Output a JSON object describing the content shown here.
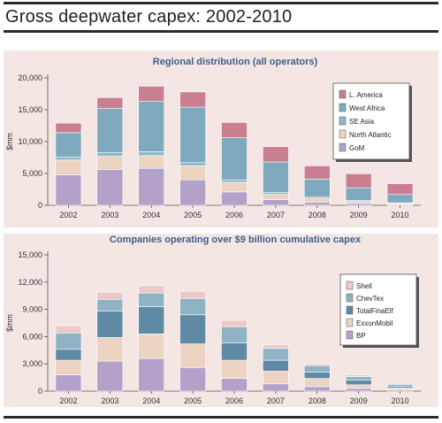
{
  "title": "Gross deepwater capex: 2002-2010",
  "colors": {
    "background": "#f4e6e3",
    "L. America": "#c97f90",
    "West Africa": "#7fa9be",
    "SE Asia": "#8fb8c9",
    "North Atlantic": "#ecd3c2",
    "GoM": "#b3a1c9",
    "Shell": "#ecc9c6",
    "ChevTex": "#8fb2c5",
    "TotalFinaElf": "#5f89a5",
    "ExxonMobil": "#ecd3c2",
    "BP": "#b3a1c9"
  },
  "chart_data": [
    {
      "type": "bar",
      "stacked": true,
      "title": "Regional distribution (all operators)",
      "ylabel": "$mm",
      "xlabel": "",
      "ylim": [
        0,
        20000
      ],
      "yticks": [
        "0",
        "5,000",
        "10,000",
        "15,000",
        "20,000"
      ],
      "ytick_values": [
        0,
        5000,
        10000,
        15000,
        20000
      ],
      "grid": false,
      "legend_position": "right",
      "categories": [
        "2002",
        "2003",
        "2004",
        "2005",
        "2006",
        "2007",
        "2008",
        "2009",
        "2010"
      ],
      "series": [
        {
          "name": "GoM",
          "values": [
            4800,
            5600,
            5800,
            4000,
            2100,
            900,
            500,
            300,
            100
          ]
        },
        {
          "name": "North Atlantic",
          "values": [
            2300,
            2100,
            2000,
            2200,
            1500,
            800,
            600,
            300,
            200
          ]
        },
        {
          "name": "SE Asia",
          "values": [
            500,
            600,
            600,
            500,
            400,
            300,
            200,
            150,
            100
          ]
        },
        {
          "name": "West Africa",
          "values": [
            3800,
            6900,
            7900,
            8700,
            6600,
            4800,
            2800,
            2000,
            1300
          ]
        },
        {
          "name": "L. America",
          "values": [
            1500,
            1700,
            2400,
            2400,
            2400,
            2400,
            2100,
            2200,
            1700
          ]
        }
      ]
    },
    {
      "type": "bar",
      "stacked": true,
      "title": "Companies operating over $9 billion cumulative capex",
      "ylabel": "$mm",
      "xlabel": "",
      "ylim": [
        0,
        15000
      ],
      "yticks": [
        "0",
        "3,000",
        "6,000",
        "9,000",
        "12,000",
        "15,000"
      ],
      "ytick_values": [
        0,
        3000,
        6000,
        9000,
        12000,
        15000
      ],
      "grid": false,
      "legend_position": "right",
      "categories": [
        "2002",
        "2003",
        "2004",
        "2005",
        "2006",
        "2007",
        "2008",
        "2009",
        "2010"
      ],
      "series": [
        {
          "name": "BP",
          "values": [
            1800,
            3300,
            3600,
            2600,
            1400,
            800,
            500,
            300,
            150
          ]
        },
        {
          "name": "ExxonMobil",
          "values": [
            1600,
            2600,
            2700,
            2600,
            2000,
            1400,
            900,
            400,
            200
          ]
        },
        {
          "name": "TotalFinaElf",
          "values": [
            1200,
            2900,
            3000,
            3200,
            1900,
            1200,
            700,
            500,
            200
          ]
        },
        {
          "name": "ChevTex",
          "values": [
            1800,
            1300,
            1500,
            1800,
            1800,
            1300,
            700,
            400,
            200
          ]
        },
        {
          "name": "Shell",
          "values": [
            800,
            800,
            800,
            800,
            700,
            400,
            200,
            200,
            100
          ]
        }
      ]
    }
  ]
}
